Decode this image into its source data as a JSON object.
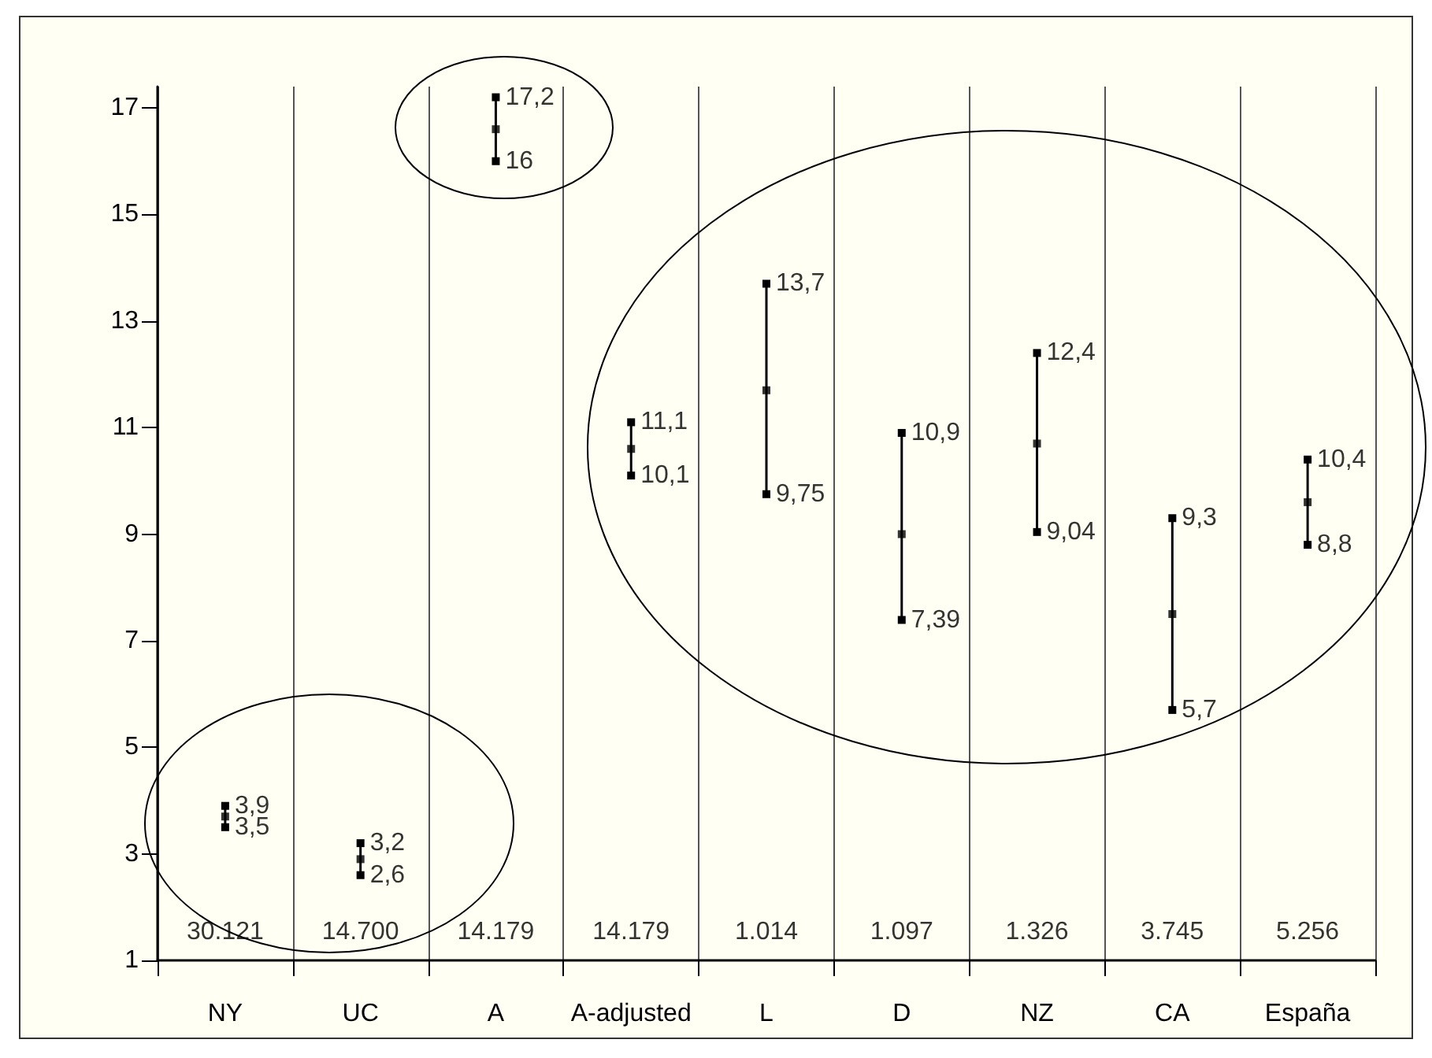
{
  "chart_data": {
    "type": "scatter",
    "categories": [
      "NY",
      "UC",
      "A",
      "A-adjusted",
      "L",
      "D",
      "NZ",
      "CA",
      "España"
    ],
    "values": [
      3.7,
      2.9,
      16.6,
      10.6,
      11.7,
      9.0,
      10.7,
      7.5,
      9.6
    ],
    "errors": [
      [
        3.5,
        3.9
      ],
      [
        2.6,
        3.2
      ],
      [
        16,
        17.2
      ],
      [
        10.1,
        11.1
      ],
      [
        9.75,
        13.7
      ],
      [
        7.39,
        10.9
      ],
      [
        9.04,
        12.4
      ],
      [
        5.7,
        9.3
      ],
      [
        8.8,
        10.4
      ]
    ],
    "color": "#000000",
    "marker": "square",
    "ylim": [
      1,
      17.4
    ],
    "yticks": [
      1,
      3,
      5,
      7,
      9,
      11,
      13,
      15,
      17
    ],
    "grid": "x",
    "annotations": [
      {
        "text": "3,9",
        "x": "NY",
        "y": 3.9
      },
      {
        "text": "3,5",
        "x": "NY",
        "y": 3.5
      },
      {
        "text": "3,2",
        "x": "UC",
        "y": 3.2
      },
      {
        "text": "2,6",
        "x": "UC",
        "y": 2.6
      },
      {
        "text": "17,2",
        "x": "A",
        "y": 17.2
      },
      {
        "text": "16",
        "x": "A",
        "y": 16
      },
      {
        "text": "11,1",
        "x": "A-adjusted",
        "y": 11.1
      },
      {
        "text": "10,1",
        "x": "A-adjusted",
        "y": 10.1
      },
      {
        "text": "13,7",
        "x": "L",
        "y": 13.7
      },
      {
        "text": "9,75",
        "x": "L",
        "y": 9.75
      },
      {
        "text": "10,9",
        "x": "D",
        "y": 10.9
      },
      {
        "text": "7,39",
        "x": "D",
        "y": 7.39
      },
      {
        "text": "12,4",
        "x": "NZ",
        "y": 12.4
      },
      {
        "text": "9,04",
        "x": "NZ",
        "y": 9.04
      },
      {
        "text": "9,3",
        "x": "CA",
        "y": 9.3
      },
      {
        "text": "5,7",
        "x": "CA",
        "y": 5.7
      },
      {
        "text": "10,4",
        "x": "España",
        "y": 10.4
      },
      {
        "text": "8,8",
        "x": "España",
        "y": 8.8
      },
      "30.121",
      "14.700",
      "14.179",
      "14.179",
      "1.014",
      "1.097",
      "1.326",
      "3.745",
      "5.256"
    ]
  }
}
